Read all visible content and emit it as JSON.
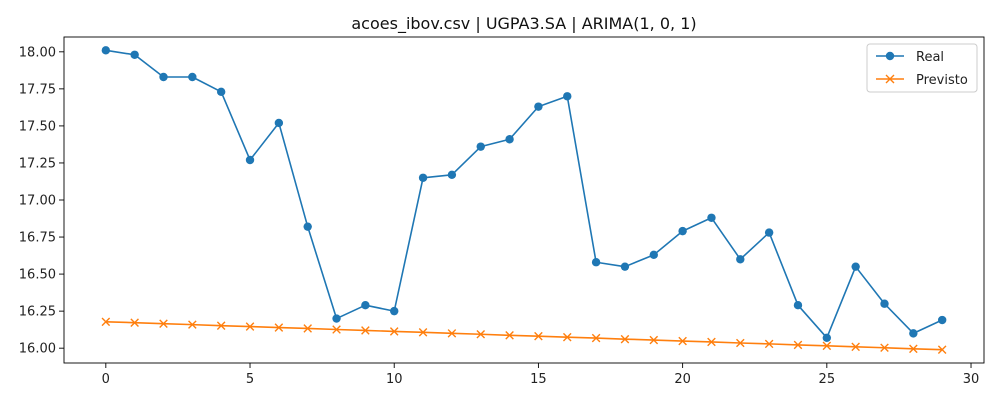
{
  "chart_data": {
    "type": "line",
    "title": "acoes_ibov.csv | UGPA3.SA | ARIMA(1, 0, 1)",
    "xlabel": "",
    "ylabel": "",
    "xlim": [
      -1.45,
      30.45
    ],
    "ylim": [
      15.9,
      18.1
    ],
    "x_ticks": [
      0,
      5,
      10,
      15,
      20,
      25,
      30
    ],
    "y_ticks": [
      16.0,
      16.25,
      16.5,
      16.75,
      17.0,
      17.25,
      17.5,
      17.75,
      18.0
    ],
    "x_tick_labels": [
      "0",
      "5",
      "10",
      "15",
      "20",
      "25",
      "30"
    ],
    "y_tick_labels": [
      "16.00",
      "16.25",
      "16.50",
      "16.75",
      "17.00",
      "17.25",
      "17.50",
      "17.75",
      "18.00"
    ],
    "grid": false,
    "legend_position": "top-right",
    "x": [
      0,
      1,
      2,
      3,
      4,
      5,
      6,
      7,
      8,
      9,
      10,
      11,
      12,
      13,
      14,
      15,
      16,
      17,
      18,
      19,
      20,
      21,
      22,
      23,
      24,
      25,
      26,
      27,
      28,
      29
    ],
    "series": [
      {
        "name": "Real",
        "color": "#1f77b4",
        "marker": "circle",
        "values": [
          18.01,
          17.98,
          17.83,
          17.83,
          17.73,
          17.27,
          17.52,
          16.82,
          16.2,
          16.29,
          16.25,
          17.15,
          17.17,
          17.36,
          17.41,
          17.63,
          17.7,
          16.58,
          16.55,
          16.63,
          16.79,
          16.88,
          16.6,
          16.78,
          16.29,
          16.07,
          16.55,
          16.3,
          16.1,
          16.19
        ]
      },
      {
        "name": "Previsto",
        "color": "#ff7f0e",
        "marker": "x",
        "values": [
          16.178,
          16.172,
          16.165,
          16.159,
          16.152,
          16.146,
          16.139,
          16.133,
          16.126,
          16.12,
          16.113,
          16.107,
          16.1,
          16.094,
          16.087,
          16.081,
          16.074,
          16.068,
          16.061,
          16.055,
          16.048,
          16.042,
          16.035,
          16.029,
          16.022,
          16.016,
          16.009,
          16.003,
          15.996,
          15.99
        ]
      }
    ]
  }
}
